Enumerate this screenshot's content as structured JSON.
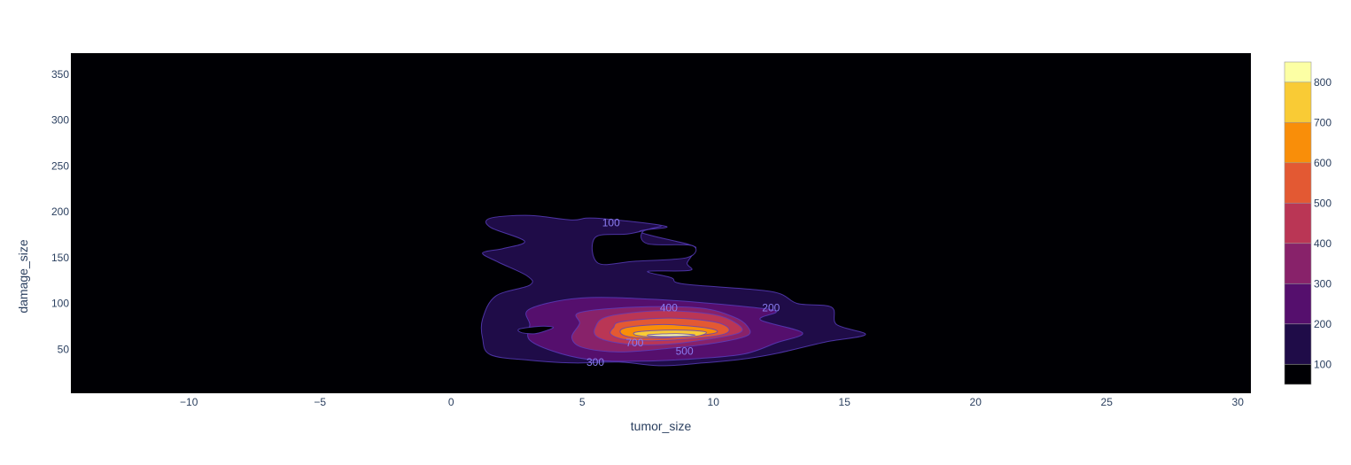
{
  "chart_data": {
    "type": "contour",
    "title": "",
    "xlabel": "tumor_size",
    "ylabel": "damage_size",
    "xlim": [
      -14.5,
      30.5
    ],
    "ylim": [
      2,
      373
    ],
    "x_ticks": [
      -10,
      -5,
      0,
      5,
      10,
      15,
      20,
      25,
      30
    ],
    "y_ticks": [
      50,
      100,
      150,
      200,
      250,
      300,
      350
    ],
    "colorbar": {
      "ticks": [
        100,
        200,
        300,
        400,
        500,
        600,
        700,
        800
      ],
      "range": [
        50,
        850
      ],
      "levels": [
        {
          "from": 50,
          "to": 100,
          "color": "#000004"
        },
        {
          "from": 100,
          "to": 200,
          "color": "#1f0c48"
        },
        {
          "from": 200,
          "to": 300,
          "color": "#550f6d"
        },
        {
          "from": 300,
          "to": 400,
          "color": "#88226a"
        },
        {
          "from": 400,
          "to": 500,
          "color": "#ba3655"
        },
        {
          "from": 500,
          "to": 600,
          "color": "#e35933"
        },
        {
          "from": 600,
          "to": 700,
          "color": "#f98e09"
        },
        {
          "from": 700,
          "to": 800,
          "color": "#f9cb35"
        },
        {
          "from": 800,
          "to": 850,
          "color": "#fcffa4"
        }
      ]
    },
    "contour_regions": [
      {
        "level": 100,
        "color": "#1f0c48",
        "points": [
          [
            1.5,
            193
          ],
          [
            3,
            196
          ],
          [
            4.6,
            191
          ],
          [
            5.5,
            193
          ],
          [
            8.2,
            184
          ],
          [
            7.2,
            178
          ],
          [
            9.1,
            164
          ],
          [
            9.3,
            158
          ],
          [
            9.0,
            144
          ],
          [
            9.1,
            136
          ],
          [
            7.5,
            135
          ],
          [
            8.4,
            128
          ],
          [
            8.9,
            121
          ],
          [
            12.2,
            113
          ],
          [
            13.2,
            100
          ],
          [
            14.5,
            96
          ],
          [
            14.7,
            77
          ],
          [
            15.8,
            66
          ],
          [
            14.3,
            58
          ],
          [
            12.5,
            46
          ],
          [
            11.3,
            40
          ],
          [
            9.6,
            35
          ],
          [
            8.0,
            32
          ],
          [
            6.4,
            36
          ],
          [
            4.7,
            35
          ],
          [
            3.0,
            38
          ],
          [
            1.5,
            44
          ],
          [
            1.2,
            62
          ],
          [
            1.2,
            83
          ],
          [
            1.7,
            108
          ],
          [
            3.0,
            120
          ],
          [
            2.9,
            130
          ],
          [
            1.8,
            145
          ],
          [
            1.2,
            155
          ],
          [
            2.0,
            160
          ],
          [
            2.8,
            168
          ],
          [
            1.5,
            183
          ]
        ]
      },
      {
        "level": 200,
        "color": "#550f6d",
        "points": [
          [
            3.0,
            94
          ],
          [
            5.0,
            106
          ],
          [
            8.0,
            104
          ],
          [
            11.4,
            96
          ],
          [
            12.4,
            91
          ],
          [
            11.8,
            82
          ],
          [
            13.4,
            68
          ],
          [
            12.4,
            57
          ],
          [
            11.2,
            45
          ],
          [
            9.5,
            40
          ],
          [
            7.3,
            37
          ],
          [
            5.5,
            38
          ],
          [
            4.1,
            46
          ],
          [
            3.0,
            60
          ],
          [
            3.0,
            77
          ]
        ]
      },
      {
        "level": 300,
        "color": "#88226a",
        "points": [
          [
            4.9,
            90
          ],
          [
            7.0,
            96
          ],
          [
            9.5,
            95
          ],
          [
            10.8,
            85
          ],
          [
            11.3,
            75
          ],
          [
            11.3,
            65
          ],
          [
            10.1,
            57
          ],
          [
            8.3,
            51
          ],
          [
            6.4,
            47
          ],
          [
            5.0,
            52
          ],
          [
            4.6,
            63
          ],
          [
            4.9,
            78
          ]
        ]
      },
      {
        "level": 400,
        "color": "#ba3655",
        "points": [
          [
            6.0,
            86
          ],
          [
            8.0,
            92
          ],
          [
            10.0,
            88
          ],
          [
            10.9,
            78
          ],
          [
            11.0,
            68
          ],
          [
            9.6,
            60
          ],
          [
            8.0,
            55
          ],
          [
            6.6,
            56
          ],
          [
            5.6,
            63
          ],
          [
            5.5,
            74
          ]
        ]
      },
      {
        "level": 500,
        "color": "#e35933",
        "points": [
          [
            6.5,
            80
          ],
          [
            8.3,
            84
          ],
          [
            10.0,
            80
          ],
          [
            10.6,
            72
          ],
          [
            10.2,
            65
          ],
          [
            8.4,
            60
          ],
          [
            6.8,
            60
          ],
          [
            6.1,
            66
          ],
          [
            6.2,
            74
          ]
        ]
      },
      {
        "level": 600,
        "color": "#f98e09",
        "points": [
          [
            6.6,
            73
          ],
          [
            8.1,
            77
          ],
          [
            9.8,
            73
          ],
          [
            10.1,
            68
          ],
          [
            9.0,
            64
          ],
          [
            7.6,
            62
          ],
          [
            6.6,
            65
          ]
        ]
      },
      {
        "level": 700,
        "color": "#f9cb35",
        "points": [
          [
            7.1,
            69
          ],
          [
            8.5,
            71
          ],
          [
            9.7,
            69
          ],
          [
            9.3,
            64
          ],
          [
            8.0,
            63
          ],
          [
            7.1,
            65
          ]
        ]
      },
      {
        "level": 800,
        "color": "#fcffa4",
        "points": [
          [
            7.6,
            66
          ],
          [
            8.6,
            67
          ],
          [
            9.3,
            65.5
          ],
          [
            8.5,
            64
          ],
          [
            7.6,
            64.5
          ]
        ]
      }
    ],
    "holes": [
      {
        "color": "#000004",
        "points": [
          [
            2.6,
            72
          ],
          [
            3.4,
            75
          ],
          [
            3.9,
            74
          ],
          [
            3.6,
            70
          ],
          [
            3.2,
            67
          ],
          [
            2.7,
            68
          ]
        ]
      },
      {
        "color": "#000004",
        "points": [
          [
            5.5,
            172
          ],
          [
            6.8,
            176
          ],
          [
            8.0,
            184
          ],
          [
            7.3,
            178
          ],
          [
            7.5,
            165
          ],
          [
            9.2,
            163
          ],
          [
            9.0,
            150
          ],
          [
            7.0,
            146
          ],
          [
            5.6,
            144
          ]
        ]
      }
    ],
    "contour_labels": [
      {
        "text": "100",
        "x": 6.1,
        "y": 188
      },
      {
        "text": "200",
        "x": 12.2,
        "y": 95
      },
      {
        "text": "300",
        "x": 5.5,
        "y": 36
      },
      {
        "text": "400",
        "x": 8.3,
        "y": 95
      },
      {
        "text": "500",
        "x": 8.9,
        "y": 48
      },
      {
        "text": "700",
        "x": 7.0,
        "y": 57
      }
    ]
  }
}
